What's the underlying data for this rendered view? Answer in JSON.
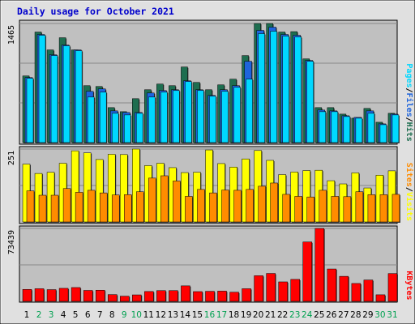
{
  "colors": {
    "frame_bg": "#e0e0e0",
    "plot_bg": "#c0c0c0",
    "grid": "#888888",
    "title": "#0000cc",
    "hits": "#1e6e50",
    "files": "#1e64dc",
    "pages": "#00d8ff",
    "visits": "#ffff00",
    "sites": "#ff8c00",
    "kbytes": "#ff0000",
    "weekend_label": "#00a050",
    "weekday_label": "#000000"
  },
  "chart_data": [
    {
      "type": "bar",
      "title": "Daily usage for October 2021",
      "ymax_label": "1465",
      "ymax": 1465,
      "legend": [
        "Pages",
        "/",
        "Files",
        "/",
        "Hits"
      ],
      "legend_colors": [
        "pages",
        "black",
        "files",
        "black",
        "hits"
      ],
      "series": [
        {
          "name": "Hits",
          "values": [
            820,
            1360,
            1140,
            1290,
            1140,
            700,
            690,
            430,
            380,
            540,
            650,
            720,
            700,
            930,
            740,
            650,
            710,
            780,
            1070,
            1465,
            1465,
            1360,
            1365,
            1030,
            430,
            430,
            350,
            300,
            420,
            250,
            360
          ]
        },
        {
          "name": "Files",
          "values": [
            800,
            1330,
            1080,
            1200,
            1140,
            630,
            660,
            390,
            370,
            370,
            610,
            640,
            650,
            760,
            650,
            580,
            650,
            700,
            1000,
            1380,
            1420,
            1330,
            1320,
            1010,
            400,
            390,
            330,
            310,
            390,
            230,
            350
          ]
        },
        {
          "name": "Pages",
          "values": [
            790,
            1320,
            1070,
            1190,
            1130,
            560,
            620,
            360,
            340,
            360,
            560,
            620,
            640,
            750,
            640,
            570,
            630,
            680,
            780,
            1340,
            1370,
            1310,
            1300,
            1000,
            380,
            380,
            320,
            300,
            360,
            220,
            340
          ]
        }
      ]
    },
    {
      "type": "bar",
      "ymax_label": "251",
      "ymax": 251,
      "legend": [
        "Sites",
        "/",
        "Visits"
      ],
      "legend_colors": [
        "sites",
        "black",
        "visits"
      ],
      "series": [
        {
          "name": "Visits",
          "values": [
            199,
            167,
            171,
            202,
            245,
            238,
            215,
            233,
            232,
            251,
            194,
            202,
            187,
            170,
            171,
            248,
            201,
            189,
            217,
            246,
            212,
            163,
            172,
            177,
            178,
            142,
            131,
            169,
            117,
            161,
            176
          ]
        },
        {
          "name": "Sites",
          "values": [
            107,
            92,
            92,
            115,
            102,
            109,
            100,
            93,
            94,
            104,
            151,
            159,
            141,
            88,
            112,
            100,
            110,
            109,
            112,
            123,
            134,
            95,
            88,
            86,
            109,
            88,
            87,
            104,
            94,
            94,
            95
          ]
        }
      ]
    },
    {
      "type": "bar",
      "ymax_label": "73439",
      "ymax": 73439,
      "legend": [
        "KBytes"
      ],
      "legend_colors": [
        "kbytes"
      ],
      "series": [
        {
          "name": "KBytes",
          "values": [
            12000,
            12700,
            11800,
            13100,
            13900,
            11000,
            11200,
            6800,
            5200,
            6500,
            9900,
            10800,
            10800,
            15600,
            9800,
            10100,
            10300,
            9200,
            12700,
            25800,
            28100,
            19600,
            22100,
            59800,
            73439,
            32600,
            25200,
            18000,
            21500,
            6600,
            28000
          ]
        }
      ]
    }
  ],
  "days": [
    "1",
    "2",
    "3",
    "4",
    "5",
    "6",
    "7",
    "8",
    "9",
    "10",
    "11",
    "12",
    "13",
    "14",
    "15",
    "16",
    "17",
    "18",
    "19",
    "20",
    "21",
    "22",
    "23",
    "24",
    "25",
    "26",
    "27",
    "28",
    "29",
    "30",
    "31"
  ],
  "weekend_days": [
    2,
    3,
    9,
    10,
    16,
    17,
    23,
    24,
    30,
    31
  ]
}
